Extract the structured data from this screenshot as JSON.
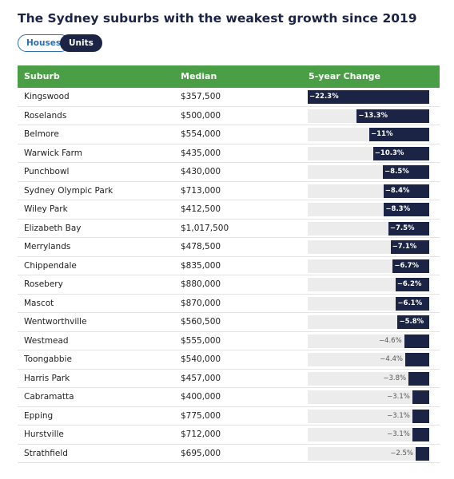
{
  "header": {
    "title": "The Sydney suburbs with the weakest growth since 2019"
  },
  "tabs": [
    "Houses",
    "Units"
  ],
  "table": {
    "columns": [
      "Suburb",
      "Median",
      "5-year Change"
    ],
    "rows": [
      {
        "suburb": "Kingswood",
        "median": "$357,500",
        "change": {
          "value": -22.3,
          "label": "−22.3%"
        }
      },
      {
        "suburb": "Roselands",
        "median": "$500,000",
        "change": {
          "value": -13.3,
          "label": "−13.3%"
        }
      },
      {
        "suburb": "Belmore",
        "median": "$554,000",
        "change": {
          "value": -11,
          "label": "−11%"
        }
      },
      {
        "suburb": "Warwick Farm",
        "median": "$435,000",
        "change": {
          "value": -10.3,
          "label": "−10.3%"
        }
      },
      {
        "suburb": "Punchbowl",
        "median": "$430,000",
        "change": {
          "value": -8.5,
          "label": "−8.5%"
        }
      },
      {
        "suburb": "Sydney Olympic Park",
        "median": "$713,000",
        "change": {
          "value": -8.4,
          "label": "−8.4%"
        }
      },
      {
        "suburb": "Wiley Park",
        "median": "$412,500",
        "change": {
          "value": -8.3,
          "label": "−8.3%"
        }
      },
      {
        "suburb": "Elizabeth Bay",
        "median": "$1,017,500",
        "change": {
          "value": -7.5,
          "label": "−7.5%"
        }
      },
      {
        "suburb": "Merrylands",
        "median": "$478,500",
        "change": {
          "value": -7.1,
          "label": "−7.1%"
        }
      },
      {
        "suburb": "Chippendale",
        "median": "$835,000",
        "change": {
          "value": -6.7,
          "label": "−6.7%"
        }
      },
      {
        "suburb": "Rosebery",
        "median": "$880,000",
        "change": {
          "value": -6.2,
          "label": "−6.2%"
        }
      },
      {
        "suburb": "Mascot",
        "median": "$870,000",
        "change": {
          "value": -6.1,
          "label": "−6.1%"
        }
      },
      {
        "suburb": "Wentworthville",
        "median": "$560,500",
        "change": {
          "value": -5.8,
          "label": "−5.8%"
        }
      },
      {
        "suburb": "Westmead",
        "median": "$555,000",
        "change": {
          "value": -4.6,
          "label": "−4.6%"
        }
      },
      {
        "suburb": "Toongabbie",
        "median": "$540,000",
        "change": {
          "value": -4.4,
          "label": "−4.4%"
        }
      },
      {
        "suburb": "Harris Park",
        "median": "$457,000",
        "change": {
          "value": -3.8,
          "label": "−3.8%"
        }
      },
      {
        "suburb": "Cabramatta",
        "median": "$400,000",
        "change": {
          "value": -3.1,
          "label": "−3.1%"
        }
      },
      {
        "suburb": "Epping",
        "median": "$775,000",
        "change": {
          "value": -3.1,
          "label": "−3.1%"
        }
      },
      {
        "suburb": "Hurstville",
        "median": "$712,000",
        "change": {
          "value": -3.1,
          "label": "−3.1%"
        }
      },
      {
        "suburb": "Strathfield",
        "median": "$695,000",
        "change": {
          "value": -2.5,
          "label": "−2.5%"
        }
      }
    ]
  }
}
